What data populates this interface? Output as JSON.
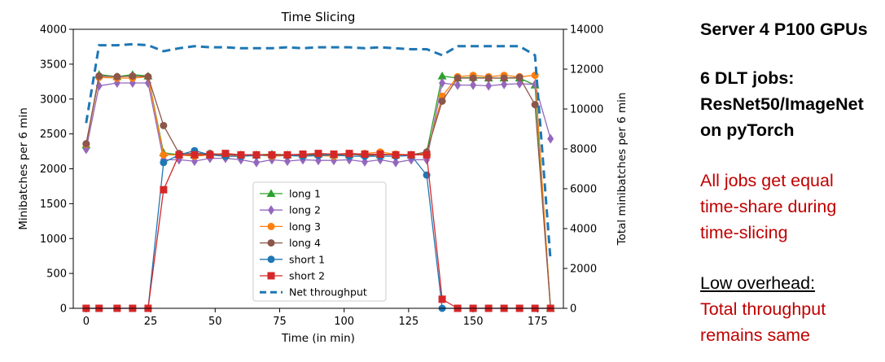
{
  "colors": {
    "long1": "#2ca02c",
    "long2": "#9467bd",
    "long3": "#ff7f0e",
    "long4": "#8c564b",
    "short1": "#1f77b4",
    "short2": "#d62728",
    "net": "#1f77b4",
    "red_text": "#c00000"
  },
  "chart_data": {
    "type": "line",
    "title": "Time Slicing",
    "xlabel": "Time (in min)",
    "ylabel": "Minibatches per 6 min",
    "ylabel_right": "Total minibatches per 6 min",
    "xlim": [
      -5,
      185
    ],
    "ylim": [
      0,
      4000
    ],
    "ylim_right": [
      0,
      14000
    ],
    "x_ticks": [
      0,
      25,
      50,
      75,
      100,
      125,
      150,
      175
    ],
    "y_ticks": [
      0,
      500,
      1000,
      1500,
      2000,
      2500,
      3000,
      3500,
      4000
    ],
    "y_ticks_right": [
      0,
      2000,
      4000,
      6000,
      8000,
      10000,
      12000,
      14000
    ],
    "legend_position": "lower-center",
    "grid": false,
    "series": [
      {
        "name": "long 1",
        "marker": "triangle",
        "color_key": "long1",
        "axis": "left",
        "x": [
          0,
          5,
          12,
          18,
          24,
          30,
          36,
          42,
          48,
          54,
          60,
          66,
          72,
          78,
          84,
          90,
          96,
          102,
          108,
          114,
          120,
          126,
          132,
          138,
          144,
          150,
          156,
          162,
          168,
          174,
          180
        ],
        "y": [
          2340,
          3350,
          3320,
          3350,
          3330,
          2230,
          2200,
          2200,
          2210,
          2200,
          2200,
          2200,
          2210,
          2200,
          2200,
          2210,
          2200,
          2200,
          2210,
          2200,
          2200,
          2200,
          2240,
          3330,
          3300,
          3310,
          3300,
          3300,
          3300,
          3200,
          0
        ]
      },
      {
        "name": "long 2",
        "marker": "diamond",
        "color_key": "long2",
        "axis": "left",
        "x": [
          0,
          5,
          12,
          18,
          24,
          30,
          36,
          42,
          48,
          54,
          60,
          66,
          72,
          78,
          84,
          90,
          96,
          102,
          108,
          114,
          120,
          126,
          132,
          138,
          144,
          150,
          156,
          162,
          168,
          174,
          180
        ],
        "y": [
          2280,
          3190,
          3230,
          3230,
          3230,
          2130,
          2130,
          2110,
          2150,
          2150,
          2130,
          2090,
          2130,
          2110,
          2130,
          2120,
          2120,
          2130,
          2100,
          2130,
          2090,
          2130,
          2130,
          3230,
          3200,
          3200,
          3190,
          3210,
          3220,
          3210,
          2430
        ]
      },
      {
        "name": "long 3",
        "marker": "circle",
        "color_key": "long3",
        "axis": "left",
        "x": [
          0,
          5,
          12,
          18,
          24,
          30,
          36,
          42,
          48,
          54,
          60,
          66,
          72,
          78,
          84,
          90,
          96,
          102,
          108,
          114,
          120,
          126,
          132,
          138,
          144,
          150,
          156,
          162,
          168,
          174,
          180
        ],
        "y": [
          2350,
          3310,
          3300,
          3300,
          3320,
          2200,
          2200,
          2180,
          2200,
          2180,
          2190,
          2200,
          2180,
          2190,
          2200,
          2190,
          2180,
          2200,
          2220,
          2240,
          2210,
          2200,
          2220,
          3040,
          3320,
          3340,
          3320,
          3340,
          3320,
          3340,
          0
        ]
      },
      {
        "name": "long 4",
        "marker": "circle",
        "color_key": "long4",
        "axis": "left",
        "x": [
          0,
          5,
          12,
          18,
          24,
          30,
          36,
          42,
          48,
          54,
          60,
          66,
          72,
          78,
          84,
          90,
          96,
          102,
          108,
          114,
          120,
          126,
          132,
          138,
          144,
          150,
          156,
          162,
          168,
          174,
          180
        ],
        "y": [
          2360,
          3330,
          3320,
          3330,
          3320,
          2620,
          2220,
          2220,
          2220,
          2200,
          2200,
          2200,
          2190,
          2200,
          2190,
          2200,
          2200,
          2210,
          2190,
          2200,
          2200,
          2200,
          2240,
          2970,
          3300,
          3300,
          3300,
          3300,
          3310,
          2920,
          0
        ]
      },
      {
        "name": "short 1",
        "marker": "circle",
        "color_key": "short1",
        "axis": "left",
        "x": [
          0,
          5,
          12,
          18,
          24,
          30,
          36,
          42,
          48,
          54,
          60,
          66,
          72,
          78,
          84,
          90,
          96,
          102,
          108,
          114,
          120,
          126,
          132,
          138,
          144,
          150,
          156,
          162,
          168,
          174,
          180
        ],
        "y": [
          0,
          0,
          0,
          0,
          0,
          2090,
          2200,
          2260,
          2200,
          2180,
          2180,
          2190,
          2200,
          2190,
          2180,
          2190,
          2200,
          2180,
          2180,
          2180,
          2180,
          2190,
          1910,
          0,
          0,
          0,
          0,
          0,
          0,
          0,
          0
        ]
      },
      {
        "name": "short 2",
        "marker": "square",
        "color_key": "short2",
        "axis": "left",
        "x": [
          0,
          5,
          12,
          18,
          24,
          30,
          36,
          42,
          48,
          54,
          60,
          66,
          72,
          78,
          84,
          90,
          96,
          102,
          108,
          114,
          120,
          126,
          132,
          138,
          144,
          150,
          156,
          162,
          168,
          174,
          180
        ],
        "y": [
          0,
          0,
          0,
          0,
          0,
          1700,
          2200,
          2200,
          2200,
          2220,
          2200,
          2200,
          2200,
          2200,
          2210,
          2220,
          2210,
          2220,
          2210,
          2210,
          2200,
          2200,
          2200,
          130,
          0,
          0,
          0,
          0,
          0,
          0,
          0
        ]
      },
      {
        "name": "Net throughput",
        "marker": "none",
        "line": "dashed",
        "color_key": "net",
        "axis": "right",
        "x": [
          0,
          5,
          12,
          18,
          24,
          30,
          36,
          42,
          48,
          54,
          60,
          66,
          72,
          78,
          84,
          90,
          96,
          102,
          108,
          114,
          120,
          126,
          132,
          138,
          144,
          150,
          156,
          162,
          168,
          174,
          180
        ],
        "y": [
          9300,
          13200,
          13200,
          13250,
          13200,
          12900,
          13050,
          13150,
          13100,
          13100,
          13050,
          13050,
          13050,
          13100,
          13050,
          13100,
          13100,
          13100,
          13050,
          13100,
          13050,
          13000,
          13000,
          12700,
          13150,
          13150,
          13150,
          13150,
          13150,
          12700,
          2400
        ]
      }
    ]
  },
  "side_panel": {
    "line1": "Server 4 P100 GPUs",
    "line2": "6 DLT jobs:",
    "line3": "ResNet50/ImageNet",
    "line4": "on pyTorch",
    "line5": "All jobs get equal",
    "line6": "time-share during",
    "line7": "time-slicing",
    "line8": "Low overhead:",
    "line9": "Total throughput",
    "line10": "remains same"
  }
}
